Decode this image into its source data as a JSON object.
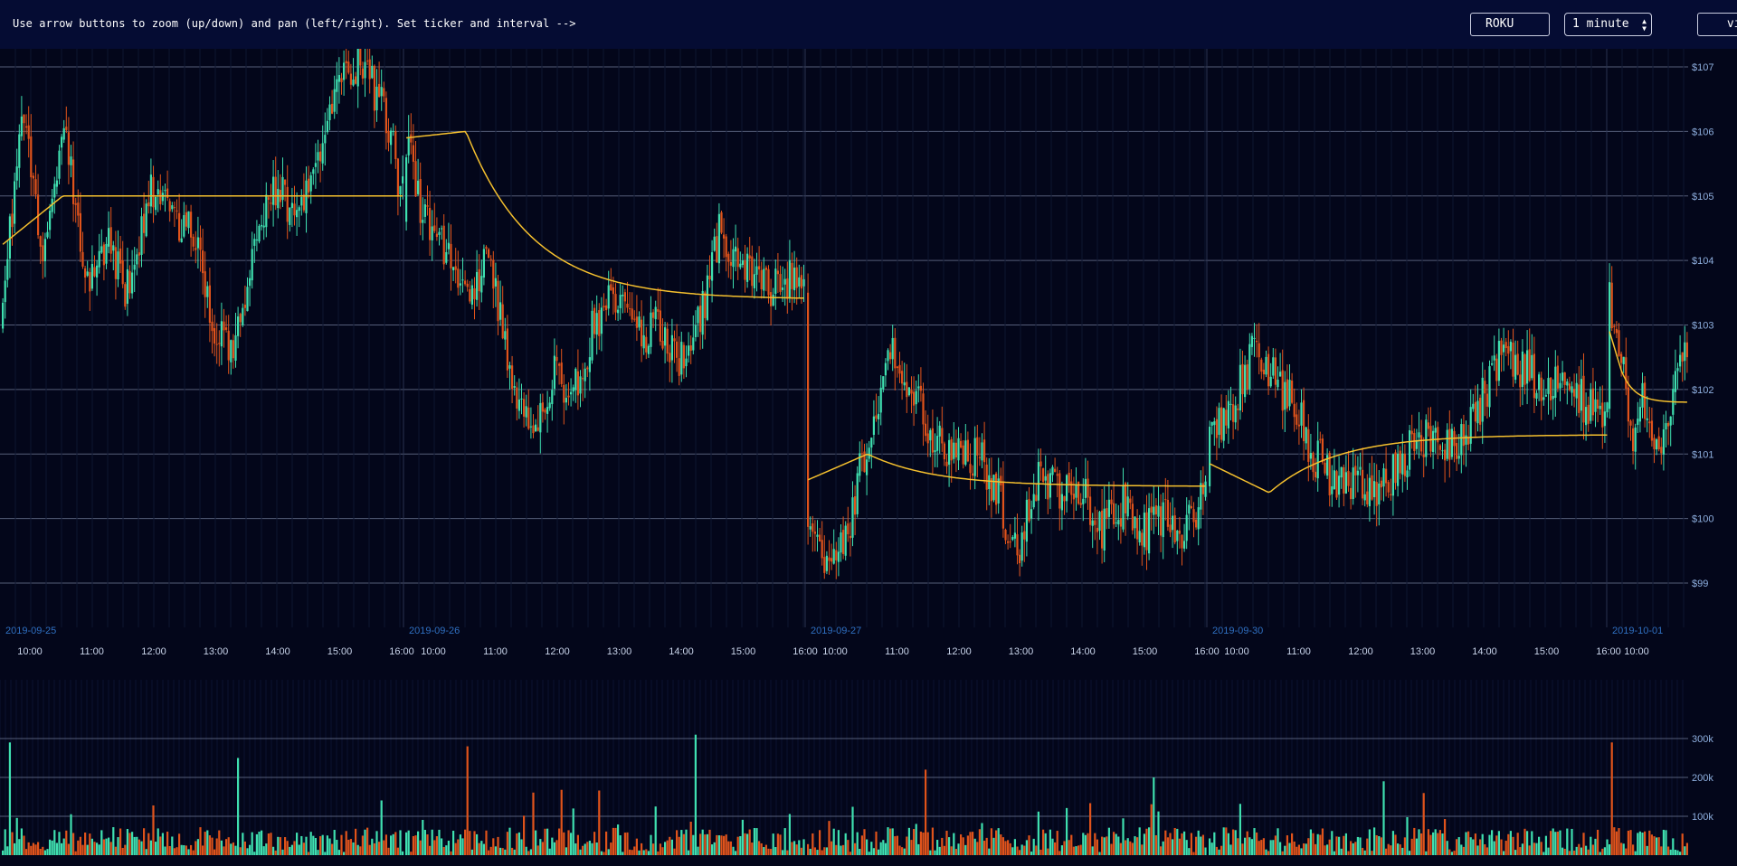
{
  "header": {
    "instructions": "Use arrow buttons to zoom (up/down) and pan (left/right). Set ticker and interval -->",
    "ticker_value": "ROKU",
    "interval_value": "1 minute",
    "view_label": "view"
  },
  "colors": {
    "background": "#03061a",
    "header": "#050c33",
    "up": "#3fe0b0",
    "down": "#e0531b",
    "vwap": "#f5c02e",
    "grid": "#6a7390",
    "axis_text": "#8fb0e0",
    "date_text": "#2f6fc0"
  },
  "chart_data": [
    {
      "type": "candlestick",
      "ticker": "ROKU",
      "interval": "1 minute",
      "y_ticks": [
        "$99",
        "$100",
        "$101",
        "$102",
        "$103",
        "$104",
        "$105",
        "$106",
        "$107"
      ],
      "y_values": [
        99,
        100,
        101,
        102,
        103,
        104,
        105,
        106,
        107
      ],
      "ylim": [
        98.3,
        107.25
      ],
      "grid": true,
      "sessions": [
        {
          "date": "2019-09-25",
          "open": 103.0,
          "close": 104.6,
          "vwap_start": 105.0,
          "vwap_end": 105.0,
          "path": [
            103.5,
            106.2,
            104.0,
            106.0,
            103.7,
            104.2,
            103.5,
            105.0,
            104.8,
            104.4,
            103.0,
            102.5,
            104.5,
            105.1,
            104.6,
            105.6,
            106.9,
            107.0,
            106.5,
            105.0
          ]
        },
        {
          "date": "2019-09-26",
          "open": 104.6,
          "close": 103.5,
          "vwap_start": 106.0,
          "vwap_end": 103.4,
          "path": [
            105.8,
            104.5,
            104.0,
            103.5,
            104.2,
            102.0,
            101.2,
            102.2,
            102.0,
            103.0,
            103.5,
            102.8,
            103.0,
            102.5,
            103.0,
            104.5,
            104.0,
            103.5,
            103.8,
            103.5
          ]
        },
        {
          "date": "2019-09-27",
          "open": 103.5,
          "close": 100.0,
          "vwap_start": 101.0,
          "vwap_end": 100.5,
          "path": [
            100.2,
            99.0,
            100.0,
            101.5,
            102.5,
            102.0,
            101.2,
            101.0,
            101.0,
            100.5,
            99.4,
            100.6,
            100.4,
            100.5,
            99.8,
            100.2,
            99.8,
            100.0,
            99.7,
            100.5
          ]
        },
        {
          "date": "2019-09-30",
          "open": 100.5,
          "close": 101.5,
          "vwap_start": 100.4,
          "vwap_end": 101.3,
          "path": [
            101.3,
            101.7,
            102.5,
            102.2,
            101.8,
            101.0,
            100.6,
            100.5,
            100.3,
            100.8,
            101.3,
            101.0,
            101.2,
            101.8,
            102.7,
            102.3,
            102.1,
            102.0,
            101.8,
            101.7
          ]
        },
        {
          "date": "2019-10-01",
          "open": 101.7,
          "close": 102.4,
          "vwap_start": 102.3,
          "vwap_end": 101.8,
          "path": [
            103.5,
            102.5,
            101.3,
            101.8,
            100.8,
            101.5,
            102.0,
            102.6
          ]
        }
      ],
      "x_session_labels": [
        "2019-09-25",
        "2019-09-26",
        "2019-09-27",
        "2019-09-30",
        "2019-10-01"
      ],
      "x_hour_labels": [
        "10:00",
        "11:00",
        "12:00",
        "13:00",
        "14:00",
        "15:00",
        "16:00"
      ],
      "x_hour_labels_last": [
        "16:00",
        "10:00"
      ],
      "series": [
        {
          "name": "price"
        },
        {
          "name": "vwap"
        }
      ]
    },
    {
      "type": "bar",
      "y_ticks": [
        "100k",
        "200k",
        "300k"
      ],
      "y_values": [
        100000,
        200000,
        300000
      ],
      "ylim": [
        0,
        450000
      ],
      "typical_volume": 40000,
      "spike_volumes": [
        290000,
        250000,
        280000,
        310000,
        220000,
        200000,
        190000
      ]
    }
  ]
}
